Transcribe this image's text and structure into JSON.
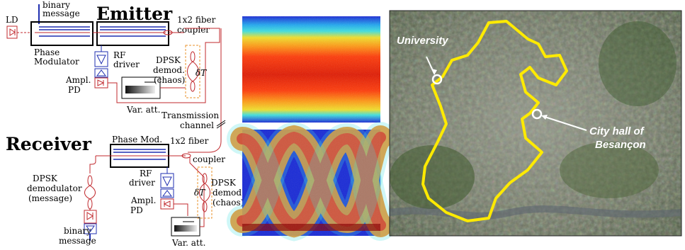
{
  "schematic": {
    "emitter_title": "Emitter",
    "receiver_title": "Receiver",
    "emitter": {
      "ld": "LD",
      "binary_message_line1": "binary",
      "binary_message_line2": "message",
      "phase_modulator_line1": "Phase",
      "phase_modulator_line2": "Modulator",
      "rf_driver_line1": "RF",
      "rf_driver_line2": "driver",
      "ampl_pd_line1": "Ampl.",
      "ampl_pd_line2": "PD",
      "var_att": "Var. att.",
      "coupler_line1": "1x2 fiber",
      "coupler_line2": "coupler",
      "dpsk_line1": "DPSK",
      "dpsk_line2": "demod.",
      "dpsk_line3": "(chaos)",
      "delay": "δT"
    },
    "channel_line1": "Transmission",
    "channel_line2": "channel",
    "receiver": {
      "phase_mod": "Phase Mod.",
      "coupler_line1": "1x2 fiber",
      "coupler_line2": "coupler",
      "rf_driver_line1": "RF",
      "rf_driver_line2": "driver",
      "ampl_pd_line1": "Ampl.",
      "ampl_pd_line2": "PD",
      "dpsk_chaos_line1": "DPSK",
      "dpsk_chaos_line2": "demod.",
      "dpsk_chaos_line3": "(chaos)",
      "delay": "δT",
      "dpsk_msg_line1": "DPSK",
      "dpsk_msg_line2": "demodulator",
      "dpsk_msg_line3": "(message)",
      "binary_message_line1": "binary",
      "binary_message_line2": "message",
      "var_att": "Var. att."
    }
  },
  "map": {
    "university_label": "University",
    "city_hall_line1": "City hall of",
    "city_hall_line2": "Besançon"
  },
  "colors": {
    "fiber": "#c0282d",
    "electrical": "#1f2fb0",
    "route": "#ffea00",
    "dashed_box": "#e8902a"
  }
}
